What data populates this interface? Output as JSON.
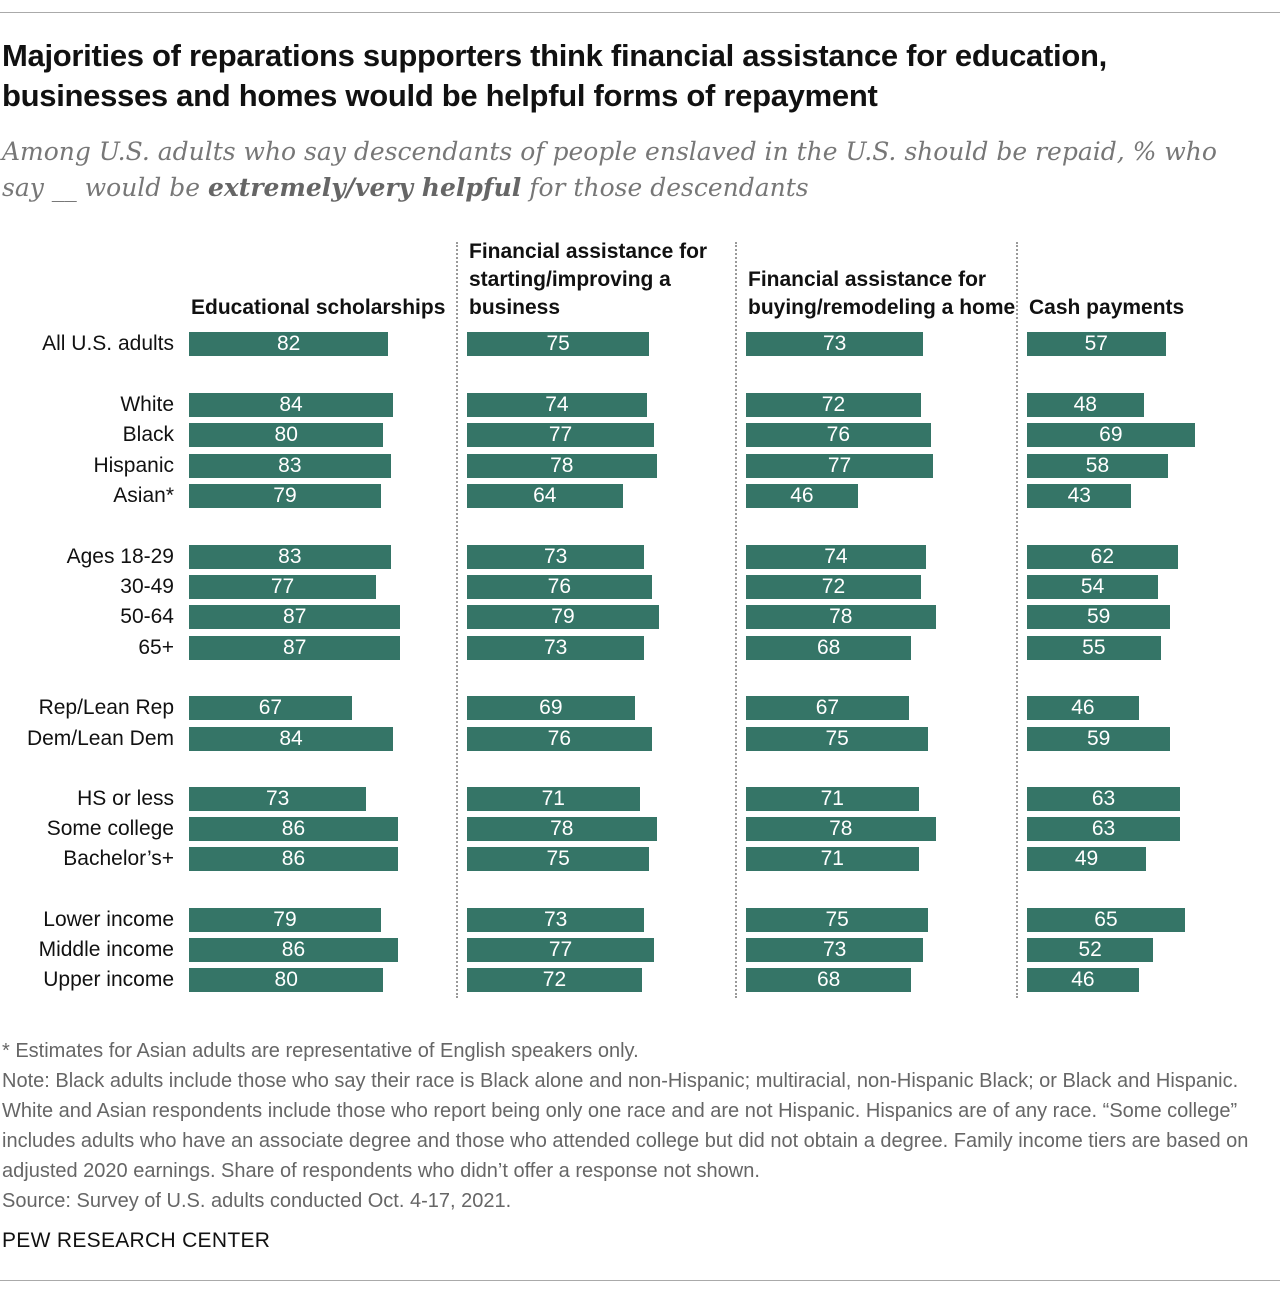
{
  "title": "Majorities of reparations supporters think financial assistance for education, businesses and homes would be helpful forms of repayment",
  "subtitle_pre": "Among U.S. adults who say descendants of people enslaved in the U.S. should be repaid, % who say __ would be ",
  "subtitle_bold": "extremely/very helpful",
  "subtitle_post": " for those descendants",
  "chart_data": {
    "type": "bar",
    "categories": [
      "All U.S. adults",
      "White",
      "Black",
      "Hispanic",
      "Asian*",
      "Ages 18-29",
      "30-49",
      "50-64",
      "65+",
      "Rep/Lean Rep",
      "Dem/Lean Dem",
      "HS or less",
      "Some college",
      "Bachelor’s+",
      "Lower income",
      "Middle income",
      "Upper income"
    ],
    "series": [
      {
        "name": "Educational scholarships",
        "values": [
          82,
          84,
          80,
          83,
          79,
          83,
          77,
          87,
          87,
          67,
          84,
          73,
          86,
          86,
          79,
          86,
          80
        ]
      },
      {
        "name": "Financial assistance for starting/improving a business",
        "values": [
          75,
          74,
          77,
          78,
          64,
          73,
          76,
          79,
          73,
          69,
          76,
          71,
          78,
          75,
          73,
          77,
          72
        ]
      },
      {
        "name": "Financial assistance for buying/remodeling a home",
        "values": [
          73,
          72,
          76,
          77,
          46,
          74,
          72,
          78,
          68,
          67,
          75,
          71,
          78,
          71,
          75,
          73,
          68
        ]
      },
      {
        "name": "Cash payments",
        "values": [
          57,
          48,
          69,
          58,
          43,
          62,
          54,
          59,
          55,
          46,
          59,
          63,
          63,
          49,
          65,
          52,
          46
        ]
      }
    ],
    "xlim": [
      0,
      100
    ],
    "unit": "%"
  },
  "notes": [
    "* Estimates for Asian adults are representative of English speakers only.",
    "Note: Black adults include those who say their race is Black alone and non-Hispanic; multiracial, non-Hispanic Black; or Black and Hispanic. White and Asian respondents include those who report being only one race and are not Hispanic. Hispanics are of any race. “Some college” includes adults who have an associate degree and those who attended college but did not obtain a degree. Family income tiers are based on adjusted 2020 earnings. Share of respondents who didn’t offer a response not shown.",
    "Source: Survey of U.S. adults conducted Oct. 4-17, 2021."
  ],
  "brand": "PEW RESEARCH CENTER",
  "colors": {
    "bar": "#357567"
  }
}
